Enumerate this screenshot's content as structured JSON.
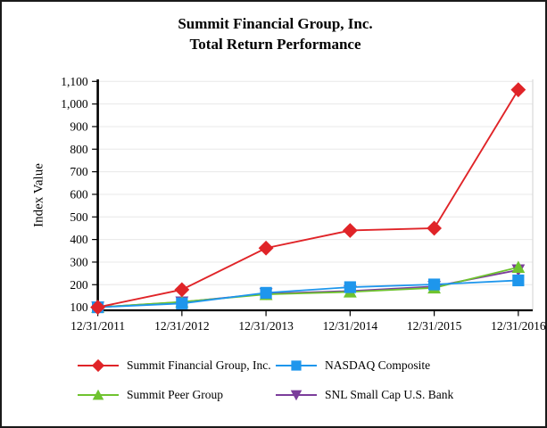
{
  "figure": {
    "title_line1": "Summit Financial Group, Inc.",
    "title_line2": "Total Return Performance"
  },
  "chart_data": {
    "type": "line",
    "title": "Summit Financial Group, Inc. Total Return Performance",
    "xlabel": "",
    "ylabel": "Index Value",
    "categories": [
      "12/31/2011",
      "12/31/2012",
      "12/31/2013",
      "12/31/2014",
      "12/31/2015",
      "12/31/2016"
    ],
    "ylim": [
      100,
      1100
    ],
    "ytick_step": 100,
    "grid": true,
    "legend_position": "bottom",
    "colors": {
      "grid": "#e8e8e8",
      "axis": "#000000",
      "plot_right_border": "#d9d9d9"
    },
    "series": [
      {
        "name": "Summit Financial Group, Inc.",
        "color": "#e02428",
        "marker": "diamond",
        "values": [
          100,
          178,
          362,
          440,
          450,
          1063
        ]
      },
      {
        "name": "NASDAQ Composite",
        "color": "#1e96ec",
        "marker": "square",
        "values": [
          100,
          117,
          164,
          189,
          201,
          219
        ]
      },
      {
        "name": "Summit Peer Group",
        "color": "#6fc32f",
        "marker": "triangle-up",
        "values": [
          100,
          124,
          157,
          168,
          186,
          277
        ]
      },
      {
        "name": "SNL Small Cap U.S. Bank",
        "color": "#7b3d9b",
        "marker": "triangle-down",
        "values": [
          100,
          123,
          160,
          172,
          192,
          265
        ]
      }
    ]
  }
}
